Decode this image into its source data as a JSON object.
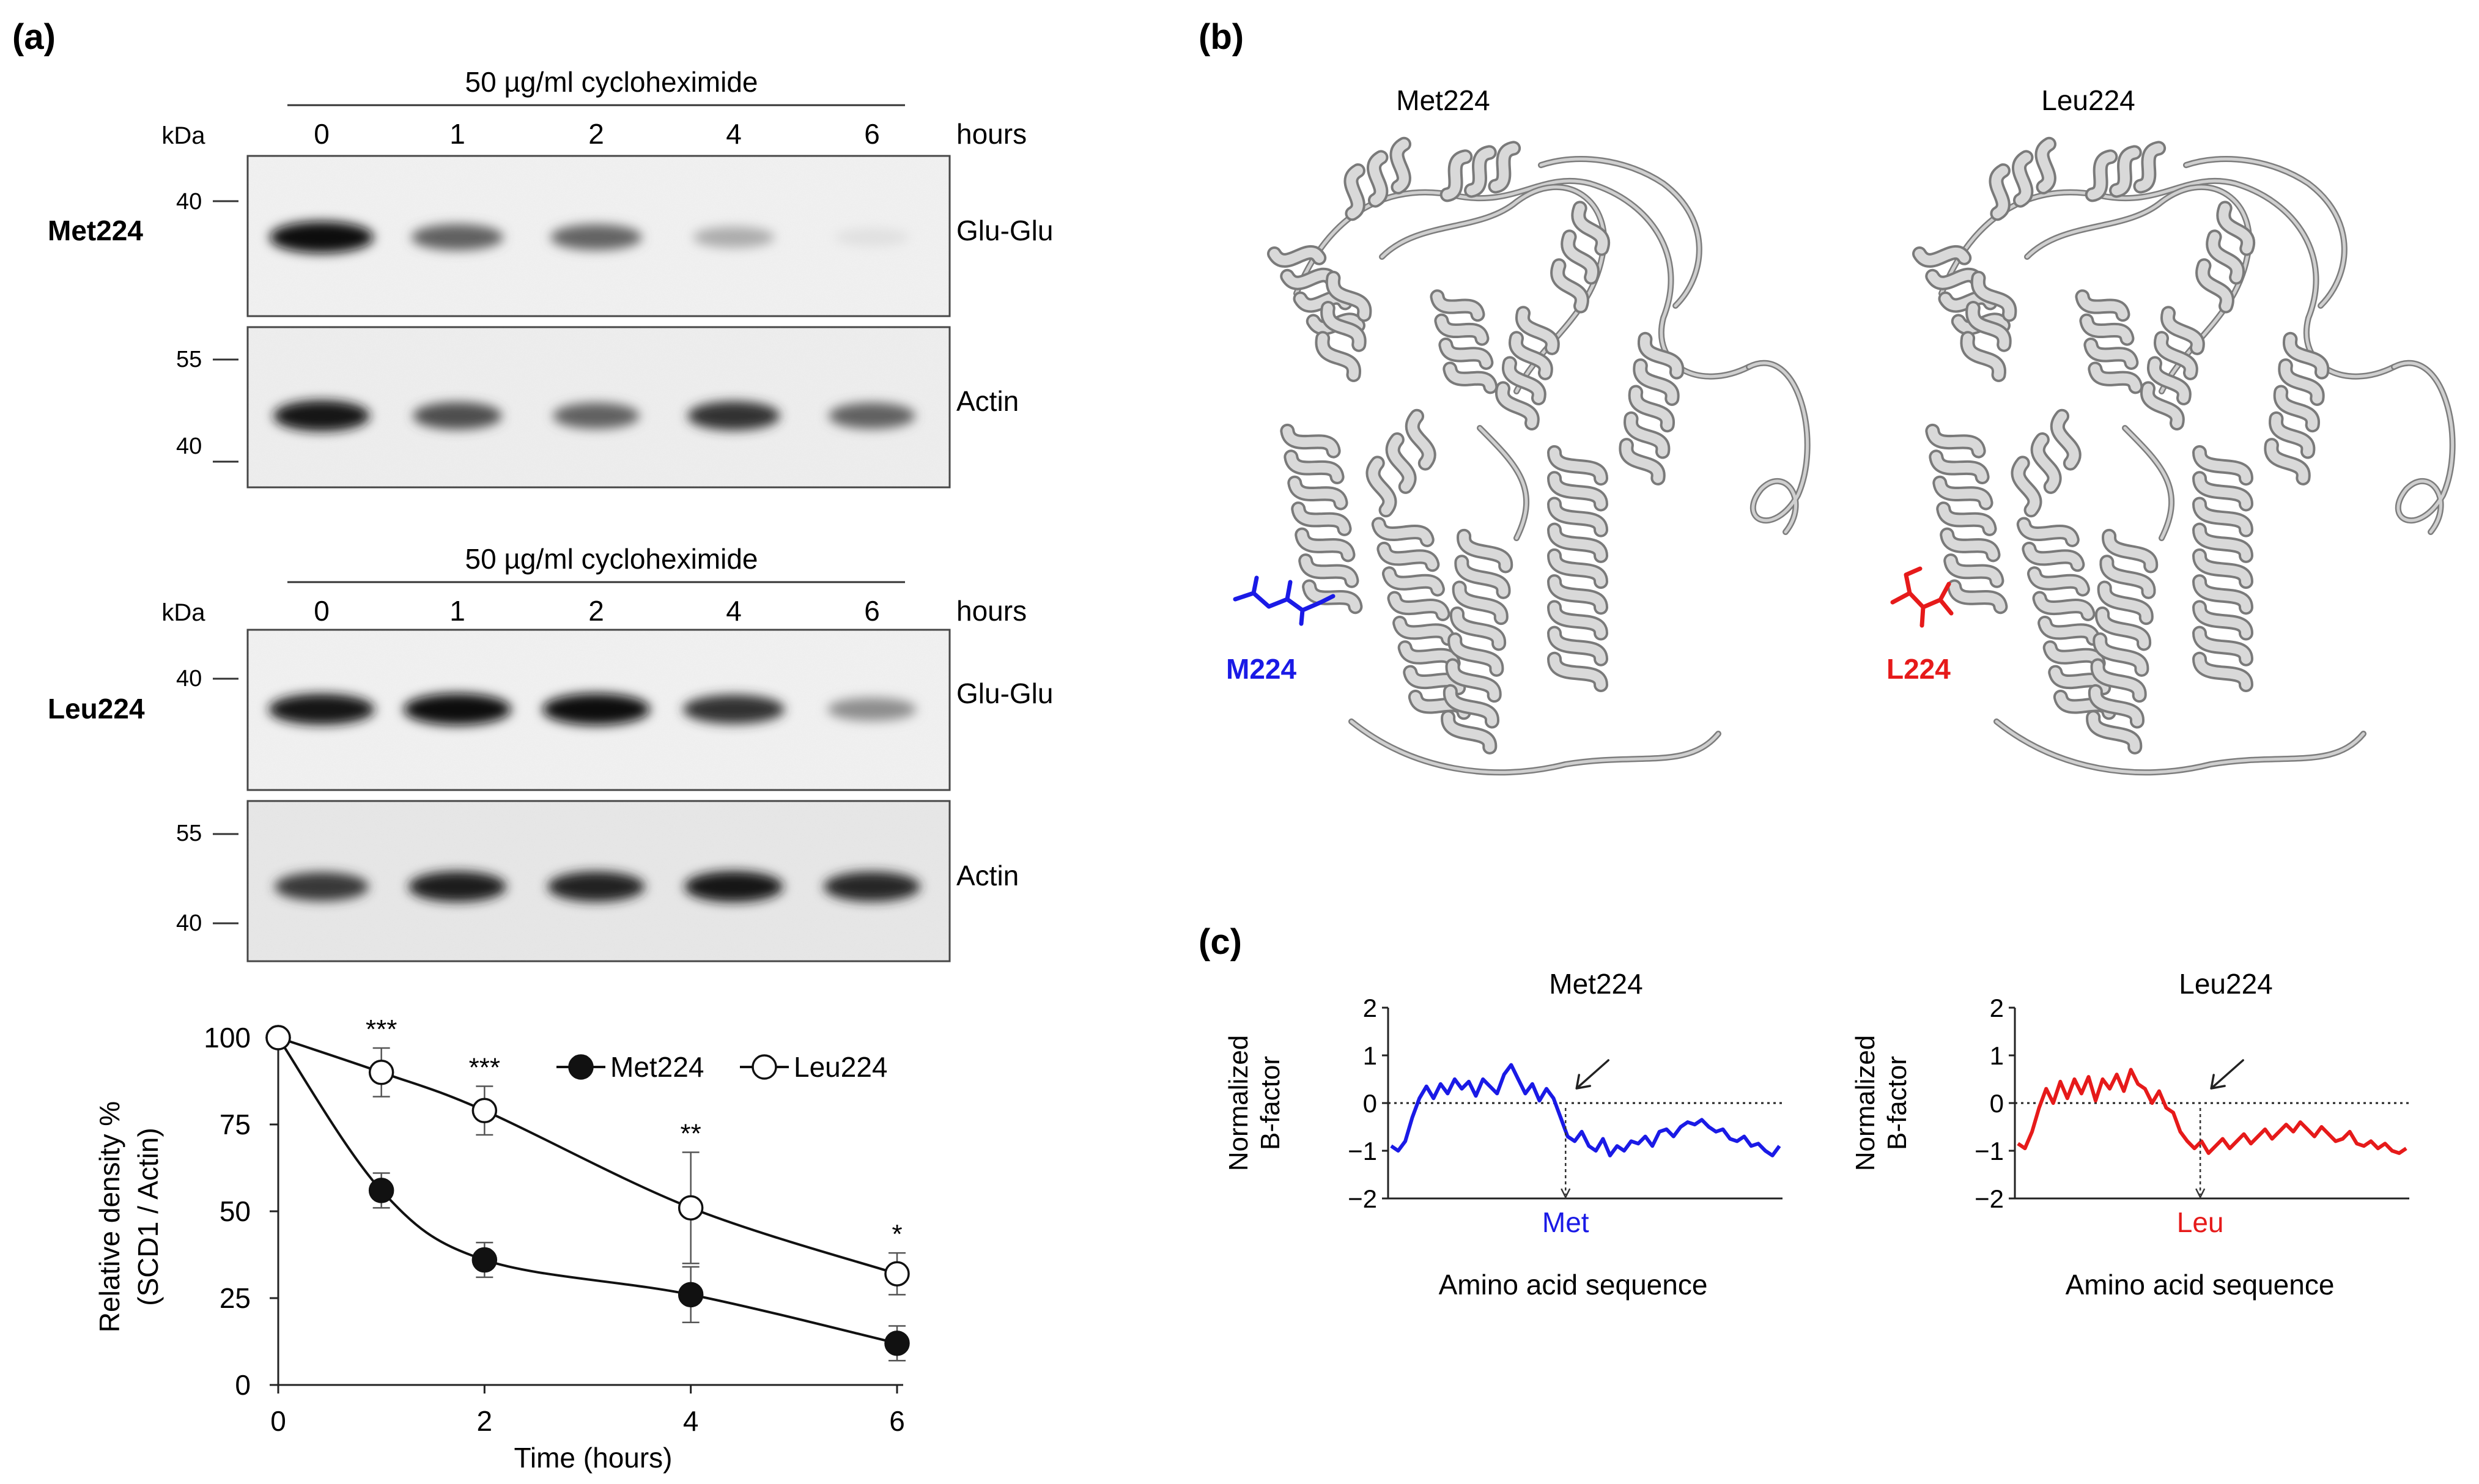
{
  "panels": {
    "a": "(a)",
    "b": "(b)",
    "c": "(c)"
  },
  "western_blots": [
    {
      "id": "met",
      "row_label": "Met224",
      "treatment": "50 µg/ml cycloheximide",
      "time_points": [
        "0",
        "1",
        "2",
        "4",
        "6"
      ],
      "time_unit": "hours",
      "kda_label": "kDa",
      "top_markers": [
        "40"
      ],
      "bottom_markers": [
        "55",
        "40"
      ],
      "top_blot_label": "Glu-Glu",
      "bottom_blot_label": "Actin",
      "top_band_intensity": [
        1.0,
        0.62,
        0.6,
        0.28,
        0.05
      ],
      "bottom_band_intensity": [
        0.95,
        0.7,
        0.62,
        0.82,
        0.62
      ]
    },
    {
      "id": "leu",
      "row_label": "Leu224",
      "treatment": "50 µg/ml cycloheximide",
      "time_points": [
        "0",
        "1",
        "2",
        "4",
        "6"
      ],
      "time_unit": "hours",
      "kda_label": "kDa",
      "top_markers": [
        "40"
      ],
      "bottom_markers": [
        "55",
        "40"
      ],
      "top_blot_label": "Glu-Glu",
      "bottom_blot_label": "Actin",
      "top_band_intensity": [
        0.95,
        1.0,
        1.0,
        0.82,
        0.42
      ],
      "bottom_band_intensity": [
        0.8,
        0.92,
        0.9,
        0.95,
        0.88
      ]
    }
  ],
  "chart_data": [
    {
      "type": "line",
      "xlabel": "Time (hours)",
      "ylabel_line1": "Relative density %",
      "ylabel_line2": "(SCD1 / Actin)",
      "x": [
        0,
        1,
        2,
        4,
        6
      ],
      "xticks": [
        "0",
        "2",
        "4",
        "6"
      ],
      "yticks": [
        "0",
        "25",
        "50",
        "75",
        "100"
      ],
      "xlim": [
        0,
        6
      ],
      "ylim": [
        0,
        100
      ],
      "series": [
        {
          "name": "Met224",
          "marker": "filled-circle",
          "values": [
            100,
            56,
            36,
            26,
            12
          ],
          "err": [
            0,
            5,
            5,
            8,
            5
          ]
        },
        {
          "name": "Leu224",
          "marker": "open-circle",
          "values": [
            100,
            90,
            79,
            51,
            32
          ],
          "err": [
            0,
            7,
            7,
            16,
            6
          ]
        }
      ],
      "significance": [
        {
          "x": 1,
          "label": "***"
        },
        {
          "x": 2,
          "label": "***"
        },
        {
          "x": 4,
          "label": "**"
        },
        {
          "x": 6,
          "label": "*"
        }
      ],
      "legend": "top-right",
      "grid": false
    },
    {
      "type": "line",
      "title": "Met224",
      "ylabel_line1": "Normalized",
      "ylabel_line2": "B-factor",
      "xlabel": "Amino acid sequence",
      "yticks": [
        "2",
        "1",
        "0",
        "−1",
        "−2"
      ],
      "ylim": [
        -2,
        2
      ],
      "marker_label": "Met",
      "color": "#1a1ae6",
      "series": [
        {
          "values": [
            -0.9,
            -1.0,
            -0.8,
            -0.3,
            0.1,
            0.35,
            0.1,
            0.4,
            0.2,
            0.5,
            0.3,
            0.45,
            0.15,
            0.5,
            0.35,
            0.2,
            0.6,
            0.8,
            0.5,
            0.2,
            0.4,
            0.05,
            0.3,
            0.1,
            -0.3,
            -0.7,
            -0.8,
            -0.6,
            -0.9,
            -1.0,
            -0.75,
            -1.1,
            -0.9,
            -1.0,
            -0.8,
            -0.85,
            -0.7,
            -0.9,
            -0.6,
            -0.55,
            -0.7,
            -0.5,
            -0.4,
            -0.45,
            -0.35,
            -0.5,
            -0.6,
            -0.55,
            -0.75,
            -0.8,
            -0.7,
            -0.9,
            -0.85,
            -1.0,
            -1.1,
            -0.9
          ]
        }
      ],
      "marker_x_fraction": 0.45
    },
    {
      "type": "line",
      "title": "Leu224",
      "ylabel_line1": "Normalized",
      "ylabel_line2": "B-factor",
      "xlabel": "Amino acid sequence",
      "yticks": [
        "2",
        "1",
        "0",
        "−1",
        "−2"
      ],
      "ylim": [
        -2,
        2
      ],
      "marker_label": "Leu",
      "color": "#e61a1a",
      "series": [
        {
          "values": [
            -0.85,
            -0.95,
            -0.6,
            -0.1,
            0.3,
            0.0,
            0.45,
            0.1,
            0.5,
            0.2,
            0.55,
            0.05,
            0.5,
            0.3,
            0.6,
            0.25,
            0.7,
            0.4,
            0.3,
            0.0,
            0.25,
            -0.1,
            -0.2,
            -0.6,
            -0.8,
            -0.95,
            -0.8,
            -1.05,
            -0.9,
            -0.75,
            -0.95,
            -0.8,
            -0.65,
            -0.85,
            -0.7,
            -0.55,
            -0.75,
            -0.6,
            -0.45,
            -0.6,
            -0.4,
            -0.55,
            -0.7,
            -0.5,
            -0.65,
            -0.8,
            -0.75,
            -0.6,
            -0.85,
            -0.9,
            -0.8,
            -0.95,
            -0.85,
            -1.0,
            -1.05,
            -0.95
          ]
        }
      ],
      "marker_x_fraction": 0.47
    }
  ],
  "structures": [
    {
      "title": "Met224",
      "residue_label": "M224",
      "color": "#1a1ae6"
    },
    {
      "title": "Leu224",
      "residue_label": "L224",
      "color": "#e61a1a"
    }
  ]
}
